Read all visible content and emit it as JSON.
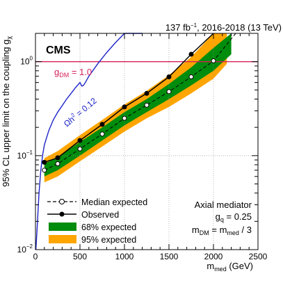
{
  "header": {
    "lumi_prefix": "137 fb",
    "lumi_exp": "−1",
    "lumi_suffix": ", 2016-2018 (13 TeV)"
  },
  "labels": {
    "cms": "CMS",
    "gdm": "g",
    "gdm_sub": "DM",
    "gdm_val": " = 1.0",
    "relic": "Ωh",
    "relic_sup": "2",
    "relic_val": " = 0.12",
    "info_line1": "Axial mediator",
    "info_line2_g": "g",
    "info_line2_sub": "q",
    "info_line2_val": " = 0.25",
    "info_line3_m1": "m",
    "info_line3_sub1": "DM",
    "info_line3_mid": " = m",
    "info_line3_sub2": "med",
    "info_line3_end": " / 3"
  },
  "legend": {
    "median": "Median expected",
    "observed": "Observed",
    "band68": "68% expected",
    "band95": "95% expected"
  },
  "colors": {
    "observed": "#000000",
    "median": "#000000",
    "band68": "#008c0c",
    "band95": "#ffa500",
    "relic_line": "#1c23c7",
    "gdm_line": "#d61f58"
  },
  "chart_data": {
    "type": "line",
    "xlabel": "m",
    "xlabel_sub": "med",
    "xlabel_unit": " (GeV)",
    "ylabel": "95% CL upper limit on the coupling g",
    "ylabel_sub": "χ",
    "xlim": [
      0,
      2500
    ],
    "ylim": [
      0.01,
      2
    ],
    "yscale": "log",
    "x_ticks": [
      0,
      500,
      1000,
      1500,
      2000,
      2500
    ],
    "y_ticks": [
      {
        "value": 0.01,
        "label": "10",
        "exp": "−2"
      },
      {
        "value": 0.1,
        "label": "10",
        "exp": "−1"
      },
      {
        "value": 1,
        "label": "1",
        "exp": "0"
      }
    ],
    "gdm_reference": 1.0,
    "masses": [
      100,
      250,
      500,
      750,
      1000,
      1250,
      1500,
      1750,
      2000,
      2250
    ],
    "series": [
      {
        "name": "Observed",
        "values": [
          0.085,
          0.095,
          0.145,
          0.215,
          0.33,
          0.46,
          0.69,
          1.2,
          2.0,
          null
        ]
      },
      {
        "name": "Median expected",
        "values": [
          0.07,
          0.082,
          0.118,
          0.17,
          0.25,
          0.345,
          0.48,
          0.69,
          1.02,
          2.0
        ]
      }
    ],
    "band68": {
      "x": [
        100,
        250,
        500,
        750,
        1000,
        1250,
        1500,
        1750,
        2000,
        2200
      ],
      "lo": [
        0.06,
        0.07,
        0.1,
        0.145,
        0.21,
        0.29,
        0.4,
        0.56,
        0.8,
        1.2
      ],
      "hi": [
        0.082,
        0.096,
        0.14,
        0.2,
        0.29,
        0.4,
        0.58,
        0.87,
        1.4,
        2.0
      ]
    },
    "band95": {
      "x": [
        100,
        250,
        500,
        750,
        1000,
        1250,
        1500,
        1750,
        2000,
        2150
      ],
      "lo": [
        0.052,
        0.06,
        0.087,
        0.125,
        0.18,
        0.25,
        0.33,
        0.46,
        0.66,
        0.95
      ],
      "hi": [
        0.094,
        0.112,
        0.165,
        0.24,
        0.35,
        0.49,
        0.72,
        1.12,
        2.0,
        2.0
      ]
    },
    "relic_curve": {
      "x": [
        5,
        20,
        40,
        60,
        80,
        100,
        150,
        200,
        250,
        300,
        350,
        400,
        450,
        500,
        520,
        540,
        560,
        600,
        700,
        800,
        900,
        1000,
        1100,
        1200
      ],
      "y": [
        0.01,
        0.018,
        0.04,
        0.07,
        0.1,
        0.13,
        0.185,
        0.24,
        0.29,
        0.34,
        0.4,
        0.46,
        0.53,
        0.6,
        0.55,
        0.56,
        0.6,
        0.7,
        0.95,
        1.25,
        1.6,
        2.0,
        2.0,
        2.0
      ]
    }
  }
}
